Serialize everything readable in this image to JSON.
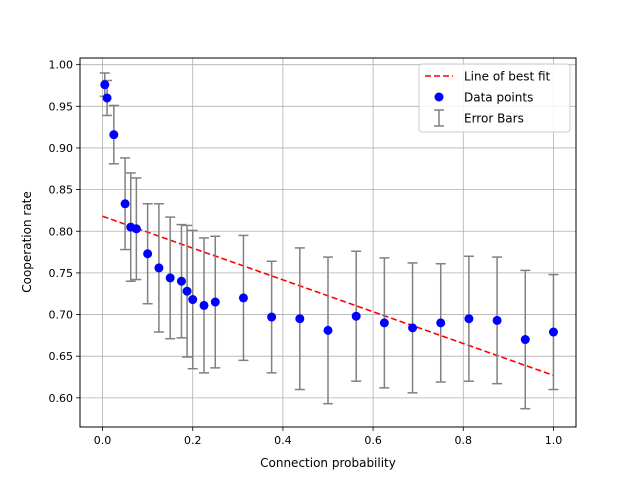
{
  "chart_data": {
    "type": "scatter",
    "xlabel": "Connection probability",
    "ylabel": "Cooperation rate",
    "xlim": [
      -0.05,
      1.05
    ],
    "ylim": [
      0.565,
      1.008
    ],
    "xticks": [
      0.0,
      0.2,
      0.4,
      0.6,
      0.8,
      1.0
    ],
    "xtick_labels": [
      "0.0",
      "0.2",
      "0.4",
      "0.6",
      "0.8",
      "1.0"
    ],
    "yticks": [
      0.6,
      0.65,
      0.7,
      0.75,
      0.8,
      0.85,
      0.9,
      0.95,
      1.0
    ],
    "ytick_labels": [
      "0.60",
      "0.65",
      "0.70",
      "0.75",
      "0.80",
      "0.85",
      "0.90",
      "0.95",
      "1.00"
    ],
    "grid": true,
    "legend_position": "top-right",
    "legend": [
      {
        "label": "Line of best fit",
        "marker": "dashed-line",
        "color": "#ff0000"
      },
      {
        "label": "Data points",
        "marker": "circle",
        "color": "#0000ff"
      },
      {
        "label": "Error Bars",
        "marker": "errorbar",
        "color": "#808080"
      }
    ],
    "best_fit": {
      "x": [
        0.0,
        1.0
      ],
      "y": [
        0.818,
        0.627
      ],
      "color": "#ff0000",
      "style": "dashed"
    },
    "points": [
      {
        "x": 0.005,
        "y": 0.976,
        "err": 0.014
      },
      {
        "x": 0.01,
        "y": 0.96,
        "err": 0.021
      },
      {
        "x": 0.025,
        "y": 0.916,
        "err": 0.035
      },
      {
        "x": 0.05,
        "y": 0.833,
        "err": 0.055
      },
      {
        "x": 0.0625,
        "y": 0.805,
        "err": 0.065
      },
      {
        "x": 0.075,
        "y": 0.803,
        "err": 0.061
      },
      {
        "x": 0.1,
        "y": 0.773,
        "err": 0.06
      },
      {
        "x": 0.125,
        "y": 0.756,
        "err": 0.077
      },
      {
        "x": 0.15,
        "y": 0.744,
        "err": 0.073
      },
      {
        "x": 0.175,
        "y": 0.74,
        "err": 0.068
      },
      {
        "x": 0.1875,
        "y": 0.728,
        "err": 0.079
      },
      {
        "x": 0.2,
        "y": 0.718,
        "err": 0.083
      },
      {
        "x": 0.225,
        "y": 0.711,
        "err": 0.081
      },
      {
        "x": 0.25,
        "y": 0.715,
        "err": 0.079
      },
      {
        "x": 0.3125,
        "y": 0.72,
        "err": 0.075
      },
      {
        "x": 0.375,
        "y": 0.697,
        "err": 0.067
      },
      {
        "x": 0.4375,
        "y": 0.695,
        "err": 0.085
      },
      {
        "x": 0.5,
        "y": 0.681,
        "err": 0.088
      },
      {
        "x": 0.5625,
        "y": 0.698,
        "err": 0.078
      },
      {
        "x": 0.625,
        "y": 0.69,
        "err": 0.078
      },
      {
        "x": 0.6875,
        "y": 0.684,
        "err": 0.078
      },
      {
        "x": 0.75,
        "y": 0.69,
        "err": 0.071
      },
      {
        "x": 0.8125,
        "y": 0.695,
        "err": 0.075
      },
      {
        "x": 0.875,
        "y": 0.693,
        "err": 0.076
      },
      {
        "x": 0.9375,
        "y": 0.67,
        "err": 0.083
      },
      {
        "x": 1.0,
        "y": 0.679,
        "err": 0.069
      }
    ],
    "colors": {
      "points": "#0000ff",
      "fit": "#ff0000",
      "errorbars": "#808080",
      "grid": "#b0b0b0"
    }
  }
}
